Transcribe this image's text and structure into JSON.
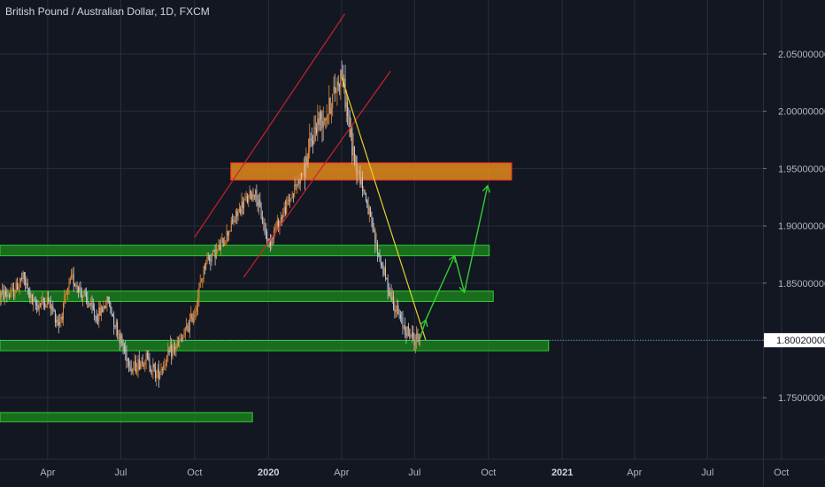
{
  "header": {
    "title": "British Pound / Australian Dollar, 1D, FXCM"
  },
  "colors": {
    "background": "#131722",
    "grid": "#2a2e39",
    "up": "#e38a3a",
    "down": "#c9cdd6",
    "zone_green": "#1e8a1e",
    "zone_green_border": "#2bd42b",
    "zone_orange": "#e38a1a",
    "zone_orange_border": "#ff2a2a",
    "channel": "#c8232d",
    "trendline": "#e6d22e",
    "projection": "#33cc33",
    "price_line": "#4aa3c8",
    "price_label_bg": "#ffffff"
  },
  "chart_data": {
    "type": "candlestick",
    "title": "British Pound / Australian Dollar, 1D, FXCM",
    "x_ticks": [
      "Apr",
      "Jul",
      "Oct",
      "2020",
      "Apr",
      "Jul",
      "Oct",
      "2021",
      "Apr",
      "Jul",
      "Oct"
    ],
    "y_ticks": [
      "2.05000000",
      "2.00000000",
      "1.95000000",
      "1.90000000",
      "1.85000000",
      "1.80000000",
      "1.75000000"
    ],
    "y_range": [
      1.705,
      2.085
    ],
    "current_price": "1.80020000",
    "current_value": 1.8002,
    "price_path": [
      [
        "2019-02-15",
        1.84
      ],
      [
        "2019-03-01",
        1.855
      ],
      [
        "2019-03-15",
        1.83
      ],
      [
        "2019-04-01",
        1.835
      ],
      [
        "2019-04-15",
        1.815
      ],
      [
        "2019-05-01",
        1.855
      ],
      [
        "2019-05-15",
        1.84
      ],
      [
        "2019-06-01",
        1.82
      ],
      [
        "2019-06-15",
        1.835
      ],
      [
        "2019-07-01",
        1.8
      ],
      [
        "2019-07-15",
        1.775
      ],
      [
        "2019-08-01",
        1.785
      ],
      [
        "2019-08-15",
        1.77
      ],
      [
        "2019-09-01",
        1.79
      ],
      [
        "2019-09-15",
        1.8
      ],
      [
        "2019-10-01",
        1.825
      ],
      [
        "2019-10-15",
        1.87
      ],
      [
        "2019-11-01",
        1.88
      ],
      [
        "2019-11-15",
        1.9
      ],
      [
        "2019-12-01",
        1.92
      ],
      [
        "2019-12-15",
        1.93
      ],
      [
        "2020-01-01",
        1.885
      ],
      [
        "2020-01-15",
        1.905
      ],
      [
        "2020-02-01",
        1.93
      ],
      [
        "2020-02-15",
        1.95
      ],
      [
        "2020-03-01",
        1.99
      ],
      [
        "2020-03-15",
        2.0
      ],
      [
        "2020-04-01",
        2.035
      ],
      [
        "2020-04-15",
        1.965
      ],
      [
        "2020-05-01",
        1.925
      ],
      [
        "2020-05-15",
        1.88
      ],
      [
        "2020-06-01",
        1.84
      ],
      [
        "2020-06-15",
        1.815
      ],
      [
        "2020-07-01",
        1.8
      ],
      [
        "2020-07-08",
        1.805
      ]
    ],
    "zones": [
      {
        "color": "orange",
        "from": "2019-11-15",
        "to": "2020-10-30",
        "low": 1.94,
        "high": 1.955
      },
      {
        "color": "green",
        "from": "2019-01-01",
        "to": "2020-10-02",
        "low": 1.874,
        "high": 1.883
      },
      {
        "color": "green",
        "from": "2019-01-01",
        "to": "2020-10-07",
        "low": 1.834,
        "high": 1.843
      },
      {
        "color": "green",
        "from": "2019-01-01",
        "to": "2020-12-15",
        "low": 1.791,
        "high": 1.8
      },
      {
        "color": "green",
        "from": "2019-01-01",
        "to": "2019-12-12",
        "low": 1.729,
        "high": 1.737
      }
    ],
    "channel_lines": [
      {
        "from": [
          "2019-10-01",
          1.89
        ],
        "to": [
          "2020-04-05",
          2.085
        ]
      },
      {
        "from": [
          "2019-12-01",
          1.855
        ],
        "to": [
          "2020-06-01",
          2.035
        ]
      }
    ],
    "trendline": {
      "from": [
        "2020-04-01",
        2.03
      ],
      "to": [
        "2020-07-15",
        1.8
      ]
    },
    "projection": [
      [
        "2020-07-08",
        1.802
      ],
      [
        "2020-07-15",
        1.818
      ],
      [
        "2020-08-20",
        1.874
      ],
      [
        "2020-09-01",
        1.842
      ],
      [
        "2020-09-30",
        1.935
      ]
    ]
  }
}
